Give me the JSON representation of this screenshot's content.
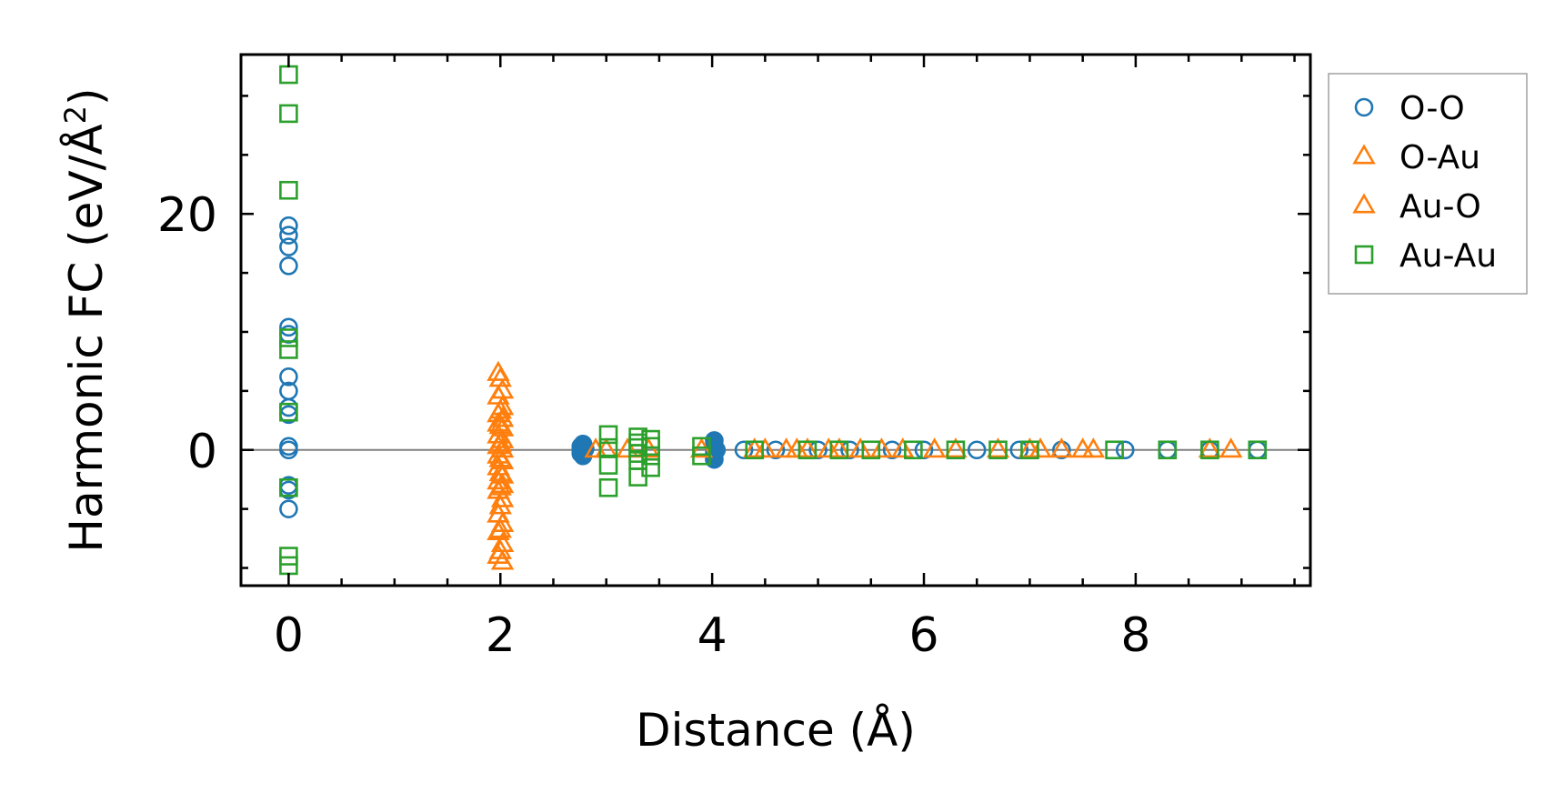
{
  "chart_data": {
    "type": "scatter",
    "xlabel": "Distance (Å)",
    "ylabel": "Harmonic FC (eV/Å²)",
    "ylabel_main": "Harmonic FC (eV/Å",
    "ylabel_sup": "2",
    "ylabel_close": ")",
    "xlim": [
      -0.45,
      9.65
    ],
    "ylim": [
      -11.5,
      33.5
    ],
    "x_ticks": [
      0,
      2,
      4,
      6,
      8
    ],
    "x_minor_step": 0.5,
    "y_ticks": [
      0,
      20
    ],
    "y_minor_step": 5,
    "zero_line": true,
    "legend_position": "outside-right",
    "series": [
      {
        "name": "O-O",
        "marker": "circle",
        "color": "#1f77b4",
        "points": [
          [
            0,
            19.0
          ],
          [
            0,
            18.2
          ],
          [
            0,
            17.2
          ],
          [
            0,
            15.6
          ],
          [
            0,
            10.4
          ],
          [
            0,
            9.8
          ],
          [
            0,
            6.2
          ],
          [
            0,
            5.0
          ],
          [
            0,
            3.6
          ],
          [
            0,
            3.0
          ],
          [
            0,
            0.3
          ],
          [
            0,
            0.0
          ],
          [
            0,
            -3.0
          ],
          [
            0,
            -3.4
          ],
          [
            0,
            -5.0
          ],
          [
            2.76,
            0.3
          ],
          [
            2.76,
            0.0
          ],
          [
            2.76,
            -0.3
          ],
          [
            2.78,
            0.5
          ],
          [
            2.78,
            -0.5
          ],
          [
            2.8,
            0.1
          ],
          [
            4.02,
            0.8
          ],
          [
            4.02,
            0.3
          ],
          [
            4.02,
            -0.3
          ],
          [
            4.02,
            -0.8
          ],
          [
            4.04,
            0.0
          ],
          [
            4.3,
            0
          ],
          [
            4.6,
            0
          ],
          [
            5.0,
            0
          ],
          [
            5.3,
            0
          ],
          [
            5.7,
            0
          ],
          [
            6.0,
            0
          ],
          [
            6.5,
            0
          ],
          [
            6.9,
            0
          ],
          [
            7.3,
            0
          ],
          [
            7.9,
            0
          ],
          [
            8.3,
            0
          ],
          [
            8.7,
            0
          ],
          [
            9.15,
            0
          ]
        ]
      },
      {
        "name": "O-Au",
        "marker": "triangle",
        "color": "#ff7f0e",
        "points": [
          [
            1.98,
            6.5
          ],
          [
            1.98,
            4.5
          ],
          [
            1.98,
            3.0
          ],
          [
            1.98,
            2.2
          ],
          [
            1.98,
            1.2
          ],
          [
            1.98,
            0.3
          ],
          [
            1.98,
            -0.5
          ],
          [
            1.98,
            -1.5
          ],
          [
            1.98,
            -2.7
          ],
          [
            1.98,
            -3.5
          ],
          [
            1.98,
            -5.5
          ],
          [
            1.98,
            -7.0
          ],
          [
            1.98,
            -9.0
          ],
          [
            2.02,
            5.0
          ],
          [
            2.02,
            3.6
          ],
          [
            2.02,
            2.6
          ],
          [
            2.02,
            1.8
          ],
          [
            2.02,
            0.8
          ],
          [
            2.02,
            0.0
          ],
          [
            2.02,
            -1.0
          ],
          [
            2.02,
            -2.2
          ],
          [
            2.02,
            -3.0
          ],
          [
            2.02,
            -4.2
          ],
          [
            2.02,
            -6.3
          ],
          [
            2.02,
            -8.0
          ],
          [
            2.02,
            -9.5
          ],
          [
            2.9,
            0
          ],
          [
            3.2,
            0
          ],
          [
            3.9,
            0
          ],
          [
            4.4,
            0
          ],
          [
            4.7,
            0
          ],
          [
            4.8,
            0
          ],
          [
            5.1,
            0
          ],
          [
            5.4,
            0
          ],
          [
            5.6,
            0
          ],
          [
            6.3,
            0
          ],
          [
            7.0,
            0
          ],
          [
            7.3,
            0
          ],
          [
            7.5,
            0
          ],
          [
            8.9,
            0
          ]
        ]
      },
      {
        "name": "Au-O",
        "marker": "triangle",
        "color": "#ff7f0e",
        "points": [
          [
            2.0,
            6.0
          ],
          [
            2.0,
            3.3
          ],
          [
            2.0,
            2.0
          ],
          [
            2.0,
            0.5
          ],
          [
            2.0,
            -0.8
          ],
          [
            2.0,
            -2.0
          ],
          [
            2.0,
            -3.2
          ],
          [
            2.0,
            -4.8
          ],
          [
            2.0,
            -6.8
          ],
          [
            2.0,
            -8.6
          ],
          [
            3.0,
            0
          ],
          [
            3.4,
            0
          ],
          [
            4.5,
            0
          ],
          [
            4.9,
            0
          ],
          [
            5.2,
            0
          ],
          [
            5.8,
            0
          ],
          [
            6.1,
            0
          ],
          [
            6.7,
            0
          ],
          [
            7.1,
            0
          ],
          [
            7.6,
            0
          ],
          [
            8.7,
            0
          ]
        ]
      },
      {
        "name": "Au-Au",
        "marker": "square",
        "color": "#2ca02c",
        "points": [
          [
            0,
            31.8
          ],
          [
            0,
            28.5
          ],
          [
            0,
            22.0
          ],
          [
            0,
            9.5
          ],
          [
            0,
            8.5
          ],
          [
            0,
            3.2
          ],
          [
            0,
            -3.2
          ],
          [
            0,
            -9.0
          ],
          [
            0,
            -9.8
          ],
          [
            3.02,
            1.3
          ],
          [
            3.02,
            0.2
          ],
          [
            3.02,
            -1.3
          ],
          [
            3.02,
            -3.2
          ],
          [
            3.3,
            1.1
          ],
          [
            3.3,
            0.6
          ],
          [
            3.3,
            0.2
          ],
          [
            3.3,
            -0.3
          ],
          [
            3.3,
            -0.9
          ],
          [
            3.3,
            -2.3
          ],
          [
            3.42,
            0.9
          ],
          [
            3.42,
            0.3
          ],
          [
            3.42,
            -0.5
          ],
          [
            3.42,
            -1.5
          ],
          [
            3.9,
            0.3
          ],
          [
            3.9,
            -0.5
          ],
          [
            4.4,
            0
          ],
          [
            4.9,
            0
          ],
          [
            5.2,
            0
          ],
          [
            5.5,
            0
          ],
          [
            5.9,
            0
          ],
          [
            6.3,
            0
          ],
          [
            6.7,
            0
          ],
          [
            7.0,
            0
          ],
          [
            7.8,
            0
          ],
          [
            8.3,
            0
          ],
          [
            8.7,
            0
          ],
          [
            9.15,
            0
          ]
        ]
      }
    ]
  }
}
